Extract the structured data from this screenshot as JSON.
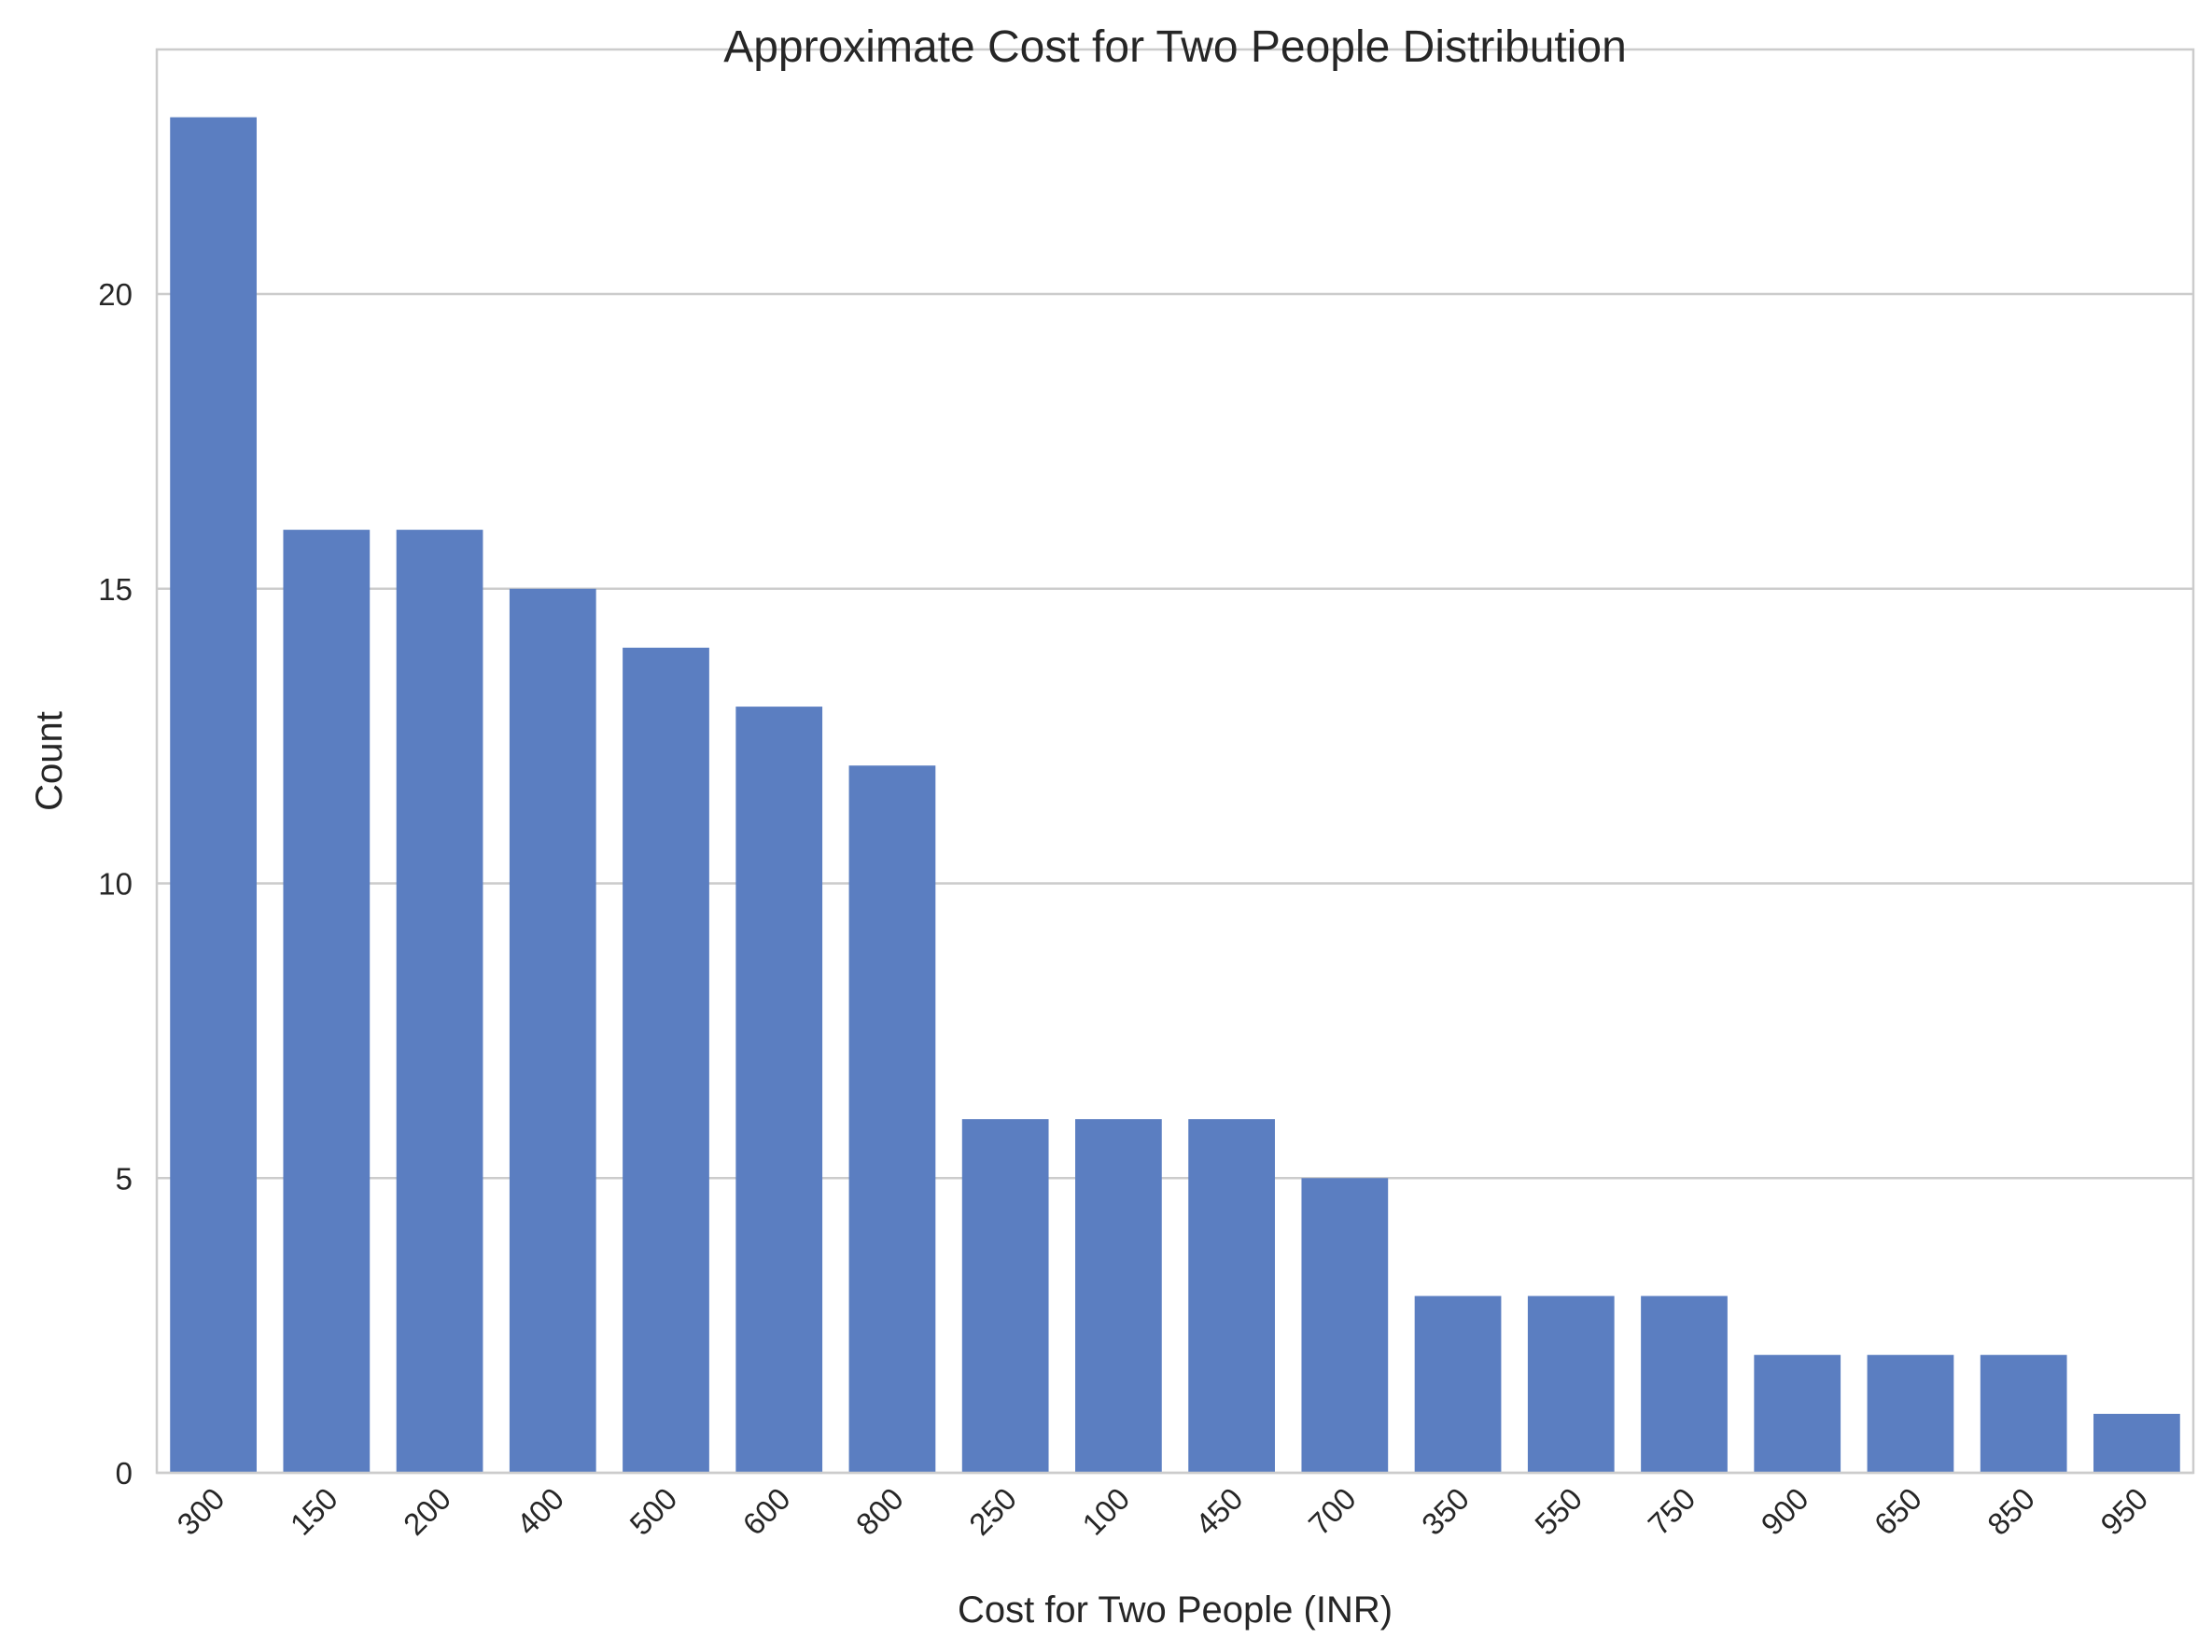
{
  "chart_data": {
    "type": "bar",
    "title": "Approximate Cost for Two People Distribution",
    "xlabel": "Cost for Two People (INR)",
    "ylabel": "Count",
    "categories": [
      "300",
      "150",
      "200",
      "400",
      "500",
      "600",
      "800",
      "250",
      "100",
      "450",
      "700",
      "350",
      "550",
      "750",
      "900",
      "650",
      "850",
      "950"
    ],
    "values": [
      23,
      16,
      16,
      15,
      14,
      13,
      12,
      6,
      6,
      6,
      5,
      3,
      3,
      3,
      2,
      2,
      2,
      1
    ],
    "ylim": [
      0,
      24.15
    ],
    "yticks": [
      0,
      5,
      10,
      15,
      20
    ],
    "grid": "horizontal",
    "bar_color": "#5b7ec1",
    "grid_color": "#cccccc",
    "spine_color": "#cccccc"
  }
}
